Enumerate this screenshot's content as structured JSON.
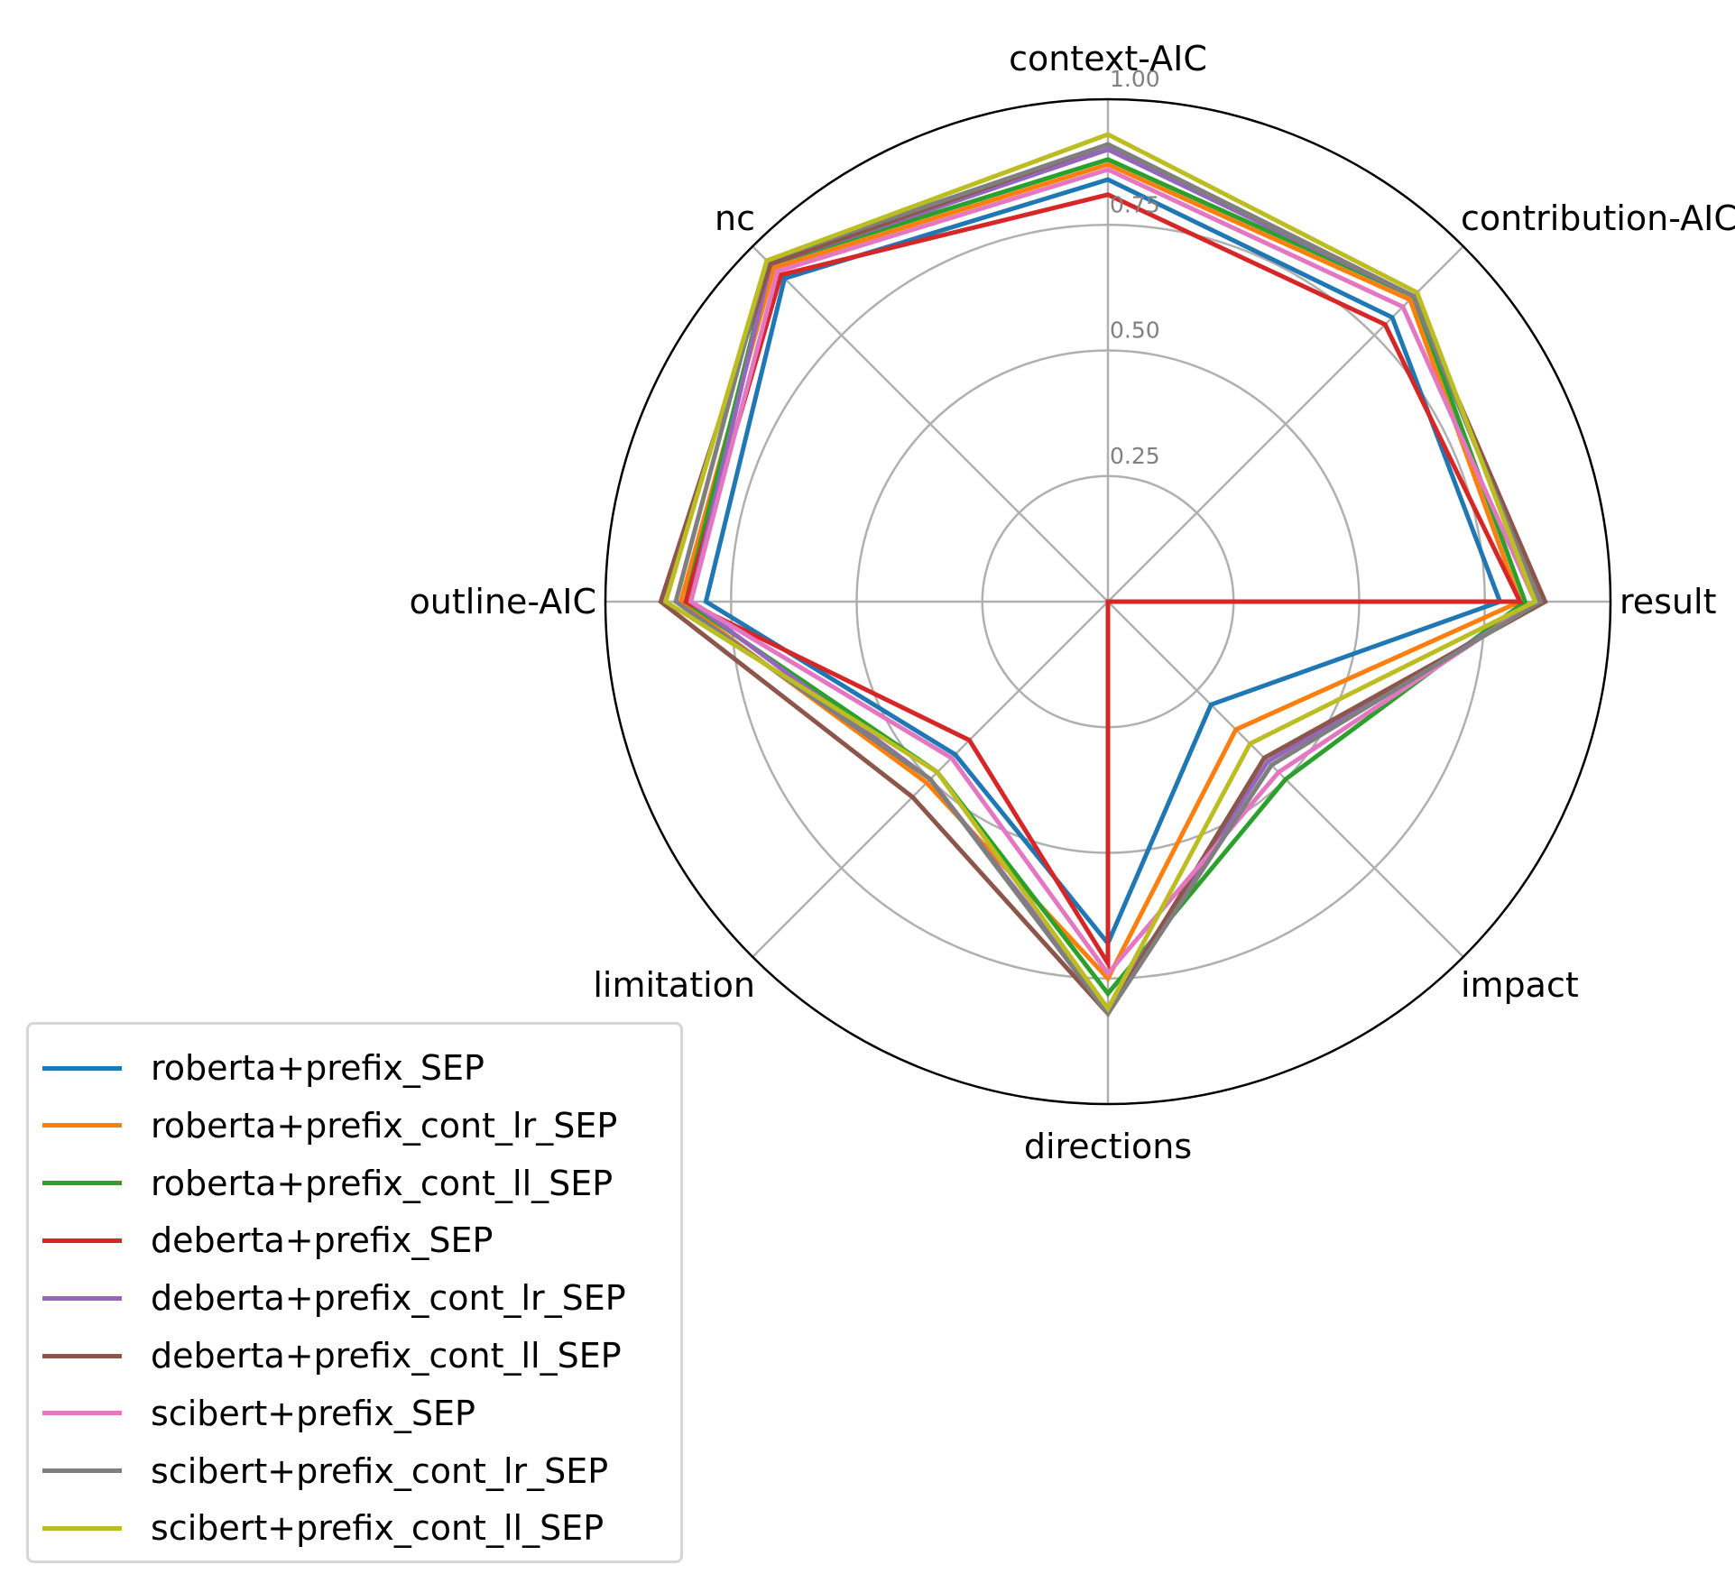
{
  "chart_data": {
    "type": "radar",
    "axes": [
      "result",
      "contribution-AIC",
      "context-AIC",
      "nc",
      "outline-AIC",
      "limitation",
      "directions",
      "impact"
    ],
    "rlim": [
      0,
      1
    ],
    "rticks": [
      0.25,
      0.5,
      0.75,
      1.0
    ],
    "rtick_labels": [
      "0.25",
      "0.50",
      "0.75",
      "1.00"
    ],
    "grid": true,
    "legend_placement": "lower-left",
    "series": [
      {
        "name": "roberta+prefix_SEP",
        "color": "#1f77b4",
        "values": [
          0.78,
          0.8,
          0.84,
          0.91,
          0.8,
          0.43,
          0.68,
          0.29
        ]
      },
      {
        "name": "roberta+prefix_cont_lr_SEP",
        "color": "#ff7f0e",
        "values": [
          0.82,
          0.85,
          0.87,
          0.94,
          0.85,
          0.51,
          0.75,
          0.36
        ]
      },
      {
        "name": "roberta+prefix_cont_ll_SEP",
        "color": "#2ca02c",
        "values": [
          0.83,
          0.86,
          0.88,
          0.95,
          0.84,
          0.48,
          0.78,
          0.5
        ]
      },
      {
        "name": "deberta+prefix_SEP",
        "color": "#d62728",
        "values": [
          0.82,
          0.78,
          0.81,
          0.92,
          0.84,
          0.39,
          0.72,
          0.0
        ]
      },
      {
        "name": "deberta+prefix_cont_lr_SEP",
        "color": "#9467bd",
        "values": [
          0.86,
          0.86,
          0.9,
          0.95,
          0.83,
          0.5,
          0.81,
          0.45
        ]
      },
      {
        "name": "deberta+prefix_cont_ll_SEP",
        "color": "#8c564b",
        "values": [
          0.87,
          0.86,
          0.91,
          0.95,
          0.89,
          0.55,
          0.82,
          0.44
        ]
      },
      {
        "name": "scibert+prefix_SEP",
        "color": "#e377c2",
        "values": [
          0.85,
          0.83,
          0.86,
          0.93,
          0.83,
          0.44,
          0.74,
          0.48
        ]
      },
      {
        "name": "scibert+prefix_cont_lr_SEP",
        "color": "#7f7f7f",
        "values": [
          0.86,
          0.86,
          0.91,
          0.96,
          0.86,
          0.5,
          0.82,
          0.46
        ]
      },
      {
        "name": "scibert+prefix_cont_ll_SEP",
        "color": "#bcbd22",
        "values": [
          0.85,
          0.87,
          0.93,
          0.96,
          0.88,
          0.48,
          0.81,
          0.4
        ]
      }
    ]
  }
}
